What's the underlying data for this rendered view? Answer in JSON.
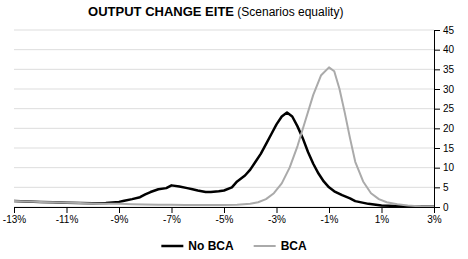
{
  "chart_data": {
    "type": "line",
    "title": "OUTPUT CHANGE EITE",
    "subtitle": " (Scenarios equality)",
    "xlim": [
      -0.13,
      0.03
    ],
    "ylim": [
      0,
      45
    ],
    "xticks": [
      {
        "value": -0.13,
        "label": "-13%"
      },
      {
        "value": -0.11,
        "label": "-11%"
      },
      {
        "value": -0.09,
        "label": "-9%"
      },
      {
        "value": -0.07,
        "label": "-7%"
      },
      {
        "value": -0.05,
        "label": "-5%"
      },
      {
        "value": -0.03,
        "label": "-3%"
      },
      {
        "value": -0.01,
        "label": "-1%"
      },
      {
        "value": 0.01,
        "label": "1%"
      },
      {
        "value": 0.03,
        "label": "3%"
      }
    ],
    "yticks": [
      0,
      5,
      10,
      15,
      20,
      25,
      30,
      35,
      40,
      45
    ],
    "grid": true,
    "legend": "bottom",
    "series": [
      {
        "name": "No BCA",
        "color": "#000000",
        "x": [
          -0.13,
          -0.125,
          -0.12,
          -0.115,
          -0.11,
          -0.105,
          -0.1,
          -0.095,
          -0.09,
          -0.088,
          -0.085,
          -0.082,
          -0.08,
          -0.078,
          -0.075,
          -0.072,
          -0.07,
          -0.067,
          -0.064,
          -0.062,
          -0.06,
          -0.057,
          -0.055,
          -0.052,
          -0.05,
          -0.047,
          -0.045,
          -0.042,
          -0.04,
          -0.038,
          -0.036,
          -0.034,
          -0.032,
          -0.03,
          -0.028,
          -0.026,
          -0.024,
          -0.022,
          -0.02,
          -0.018,
          -0.016,
          -0.014,
          -0.012,
          -0.01,
          -0.008,
          -0.005,
          -0.002,
          0.0,
          0.005,
          0.01,
          0.02,
          0.03
        ],
        "values": [
          1.5,
          1.4,
          1.3,
          1.2,
          1.1,
          1.0,
          0.95,
          1.0,
          1.3,
          1.6,
          2.0,
          2.5,
          3.2,
          3.8,
          4.5,
          4.8,
          5.5,
          5.2,
          4.8,
          4.5,
          4.2,
          3.8,
          3.8,
          4.0,
          4.2,
          5.0,
          6.5,
          8.0,
          9.5,
          11.5,
          13.5,
          16.0,
          18.5,
          21.0,
          23.0,
          24.0,
          23.0,
          20.5,
          17.5,
          14.0,
          11.0,
          8.5,
          6.5,
          5.0,
          4.0,
          3.0,
          2.2,
          1.5,
          0.8,
          0.4,
          0.15,
          0.05
        ]
      },
      {
        "name": "BCA",
        "color": "#aaaaaa",
        "x": [
          -0.13,
          -0.125,
          -0.12,
          -0.115,
          -0.11,
          -0.105,
          -0.1,
          -0.095,
          -0.09,
          -0.085,
          -0.08,
          -0.075,
          -0.07,
          -0.065,
          -0.06,
          -0.055,
          -0.05,
          -0.045,
          -0.04,
          -0.037,
          -0.034,
          -0.031,
          -0.028,
          -0.025,
          -0.022,
          -0.019,
          -0.016,
          -0.013,
          -0.01,
          -0.008,
          -0.006,
          -0.004,
          -0.002,
          0.0,
          0.003,
          0.006,
          0.009,
          0.012,
          0.016,
          0.02,
          0.025,
          0.03
        ],
        "values": [
          1.5,
          1.4,
          1.3,
          1.2,
          1.1,
          1.0,
          0.9,
          0.85,
          0.8,
          0.7,
          0.65,
          0.6,
          0.55,
          0.5,
          0.5,
          0.5,
          0.5,
          0.6,
          0.8,
          1.2,
          2.0,
          3.5,
          6.0,
          10.0,
          15.5,
          22.0,
          28.5,
          33.5,
          35.5,
          34.5,
          30.0,
          24.0,
          17.5,
          11.5,
          6.5,
          3.5,
          2.0,
          1.2,
          0.7,
          0.4,
          0.15,
          0.05
        ]
      }
    ]
  }
}
